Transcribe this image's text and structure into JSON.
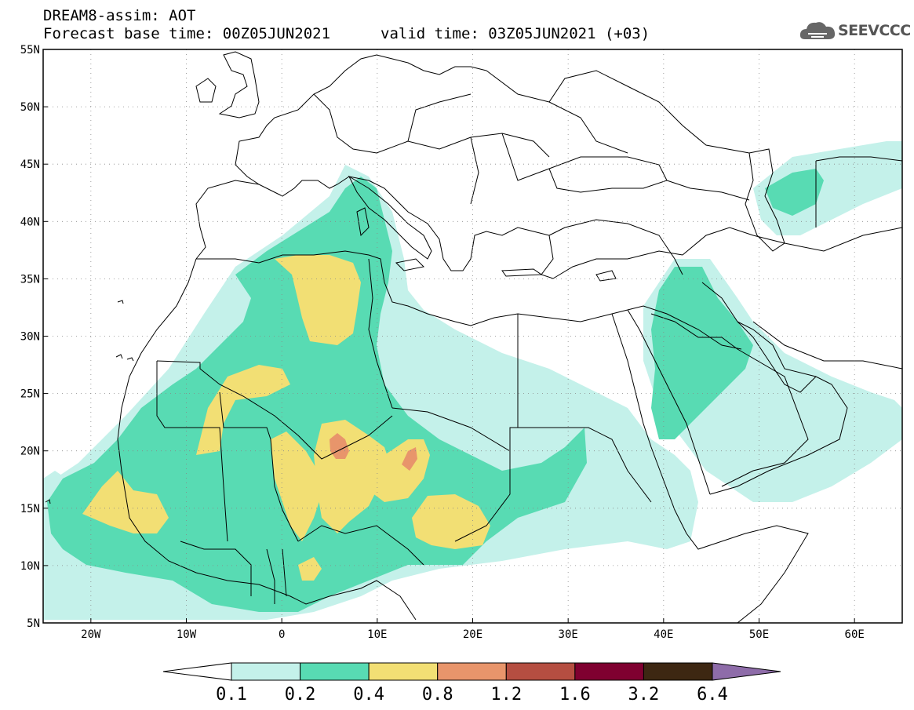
{
  "header": {
    "title_line1": "DREAM8-assim: AOT",
    "base_time": "Forecast base time: 00Z05JUN2021",
    "valid_time": "valid time: 03Z05JUN2021 (+03)"
  },
  "logo": {
    "text": "SEEVCCC",
    "icon": "cloud-logo-icon"
  },
  "map": {
    "lat_labels": [
      "55N",
      "50N",
      "45N",
      "40N",
      "35N",
      "30N",
      "25N",
      "20N",
      "15N",
      "10N",
      "5N"
    ],
    "lon_labels": [
      "20W",
      "10W",
      "0",
      "10E",
      "20E",
      "30E",
      "40E",
      "50E",
      "60E"
    ],
    "lat_values": [
      55,
      50,
      45,
      40,
      35,
      30,
      25,
      20,
      15,
      10,
      5
    ],
    "lon_values": [
      -20,
      -10,
      0,
      10,
      20,
      30,
      40,
      50,
      60
    ],
    "lon_range": [
      -25,
      65
    ],
    "lat_range": [
      5,
      55
    ],
    "grid": "dotted"
  },
  "colorbar": {
    "labels": [
      "0.1",
      "0.2",
      "0.4",
      "0.8",
      "1.2",
      "1.6",
      "3.2",
      "6.4"
    ],
    "colors": [
      "#ffffff",
      "#c4f1ea",
      "#58dbb3",
      "#f2df74",
      "#e8956b",
      "#b54e41",
      "#7f0030",
      "#3d2712",
      "#8e6ca9"
    ]
  }
}
